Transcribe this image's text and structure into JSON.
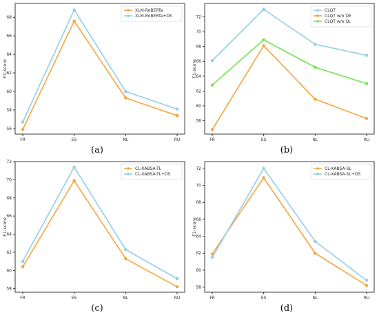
{
  "chart_data": [
    {
      "type": "line",
      "caption": "(a)",
      "categories": [
        "FR",
        "ES",
        "NL",
        "RU"
      ],
      "ylabel": "F1-score",
      "ylim": [
        55.4,
        69.5
      ],
      "yticks": [
        56,
        58,
        60,
        62,
        64,
        66,
        68
      ],
      "legend_position": "top-right",
      "series": [
        {
          "name": "XLM-RoBERTa",
          "color": "#f5a033",
          "values": [
            55.9,
            67.6,
            59.3,
            57.4
          ]
        },
        {
          "name": "XLM-RoBERTa+DS",
          "color": "#8ecae6",
          "values": [
            56.7,
            68.8,
            60.0,
            58.1
          ]
        }
      ]
    },
    {
      "type": "line",
      "caption": "(b)",
      "categories": [
        "FR",
        "ES",
        "NL",
        "RU"
      ],
      "ylabel": "F1-score",
      "ylim": [
        56.2,
        73.8
      ],
      "yticks": [
        58,
        60,
        62,
        64,
        66,
        68,
        70,
        72
      ],
      "legend_position": "top-right",
      "series": [
        {
          "name": "CLQT",
          "color": "#8ecae6",
          "values": [
            66.1,
            73.0,
            68.3,
            66.8
          ]
        },
        {
          "name": "CLQT w/o DE",
          "color": "#f5a033",
          "values": [
            56.8,
            68.1,
            60.9,
            58.3
          ]
        },
        {
          "name": "CLQT w/o QL",
          "color": "#6ee04a",
          "values": [
            62.8,
            68.9,
            65.2,
            63.0
          ]
        }
      ]
    },
    {
      "type": "line",
      "caption": "(c)",
      "categories": [
        "FR",
        "ES",
        "NL",
        "RU"
      ],
      "ylabel": "F1-score",
      "ylim": [
        57.6,
        72.0
      ],
      "yticks": [
        58,
        60,
        62,
        64,
        66,
        68,
        70,
        72
      ],
      "legend_position": "top-right",
      "series": [
        {
          "name": "CL-XABSA-TL",
          "color": "#f5a033",
          "values": [
            60.4,
            69.9,
            61.3,
            58.2
          ]
        },
        {
          "name": "CL-XABSA-TL+DS",
          "color": "#8ecae6",
          "values": [
            61.0,
            71.4,
            62.3,
            59.1
          ]
        }
      ]
    },
    {
      "type": "line",
      "caption": "(d)",
      "categories": [
        "FR",
        "ES",
        "NL",
        "RU"
      ],
      "ylabel": "F1-score",
      "ylim": [
        57.4,
        72.8
      ],
      "yticks": [
        58,
        60,
        62,
        64,
        66,
        68,
        70,
        72
      ],
      "legend_position": "top-right",
      "series": [
        {
          "name": "CL-XABSA-SL",
          "color": "#f5a033",
          "values": [
            61.9,
            70.9,
            62.0,
            58.2
          ]
        },
        {
          "name": "CL-XABSA-SL+DS",
          "color": "#8ecae6",
          "values": [
            61.5,
            72.0,
            63.4,
            58.8
          ]
        }
      ]
    }
  ]
}
